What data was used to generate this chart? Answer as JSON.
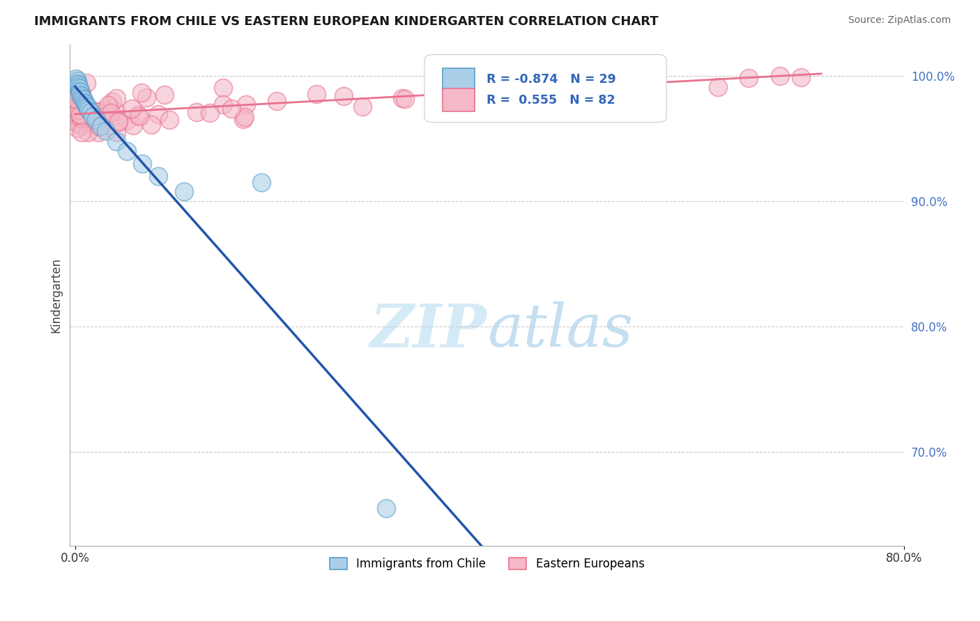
{
  "title": "IMMIGRANTS FROM CHILE VS EASTERN EUROPEAN KINDERGARTEN CORRELATION CHART",
  "source": "Source: ZipAtlas.com",
  "ylabel": "Kindergarten",
  "xlim": [
    -0.005,
    0.8
  ],
  "ylim": [
    0.625,
    1.025
  ],
  "yticks": [
    0.7,
    0.8,
    0.9,
    1.0
  ],
  "ytick_labels": [
    "70.0%",
    "80.0%",
    "90.0%",
    "100.0%"
  ],
  "xtick_labels_show": [
    "0.0%",
    "80.0%"
  ],
  "xtick_positions_show": [
    0.0,
    0.8
  ],
  "watermark_zip": "ZIP",
  "watermark_atlas": "atlas",
  "chile_color": "#aacfe8",
  "chile_edge_color": "#5b9ec9",
  "eastern_color": "#f4b8c8",
  "eastern_edge_color": "#e8718e",
  "chile_R": -0.874,
  "chile_N": 29,
  "eastern_R": 0.555,
  "eastern_N": 82,
  "chile_line_color": "#2255aa",
  "eastern_line_color": "#e8718e",
  "legend_label_chile": "Immigrants from Chile",
  "legend_label_eastern": "Eastern Europeans",
  "background_color": "#ffffff",
  "grid_color": "#cccccc",
  "tick_color_y": "#4472C4",
  "tick_color_x": "#333333"
}
